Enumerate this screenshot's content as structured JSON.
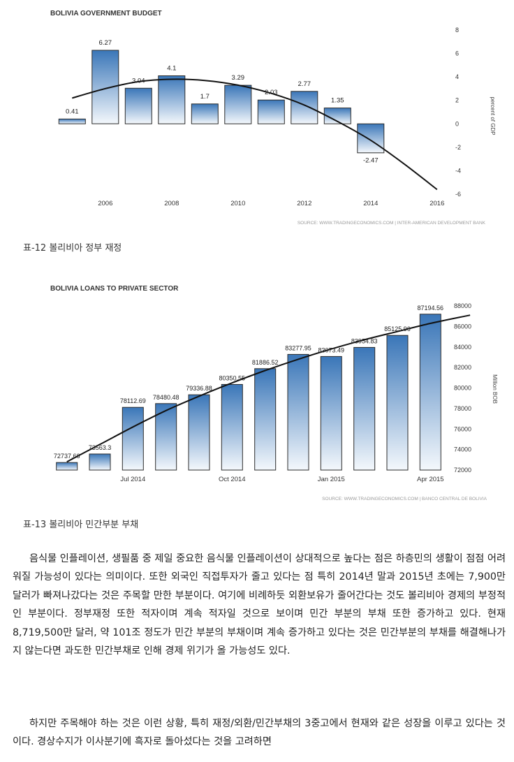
{
  "chart_data": [
    {
      "type": "bar",
      "title": "BOLIVIA GOVERNMENT BUDGET",
      "ylabel": "percent of GDP",
      "source": "SOURCE: WWW.TRADINGECONOMICS.COM | INTER-AMERICAN DEVELOPMENT BANK",
      "x": [
        2005,
        2006,
        2007,
        2008,
        2009,
        2010,
        2011,
        2012,
        2013,
        2014
      ],
      "values": [
        0.41,
        6.27,
        3.04,
        4.1,
        1.7,
        3.29,
        2.03,
        2.77,
        1.35,
        -2.47
      ],
      "value_labels": [
        "0.41",
        "6.27",
        "3.04",
        "4.1",
        "1.7",
        "3.29",
        "2.03",
        "2.77",
        "1.35",
        "-2.47"
      ],
      "xticks": [
        "2006",
        "2008",
        "2010",
        "2012",
        "2014",
        "2016"
      ],
      "xtick_values": [
        2006,
        2008,
        2010,
        2012,
        2014,
        2016
      ],
      "yticks": [
        "8",
        "6",
        "4",
        "2",
        "0",
        "-2",
        "-4",
        "-6"
      ],
      "ytick_values": [
        8,
        6,
        4,
        2,
        0,
        -2,
        -4,
        -6
      ],
      "ylim": [
        -6,
        8
      ],
      "xlim": [
        2004.3,
        2016.3
      ],
      "trend": {
        "x": [
          2005,
          2006,
          2007,
          2008,
          2009,
          2010,
          2011,
          2012,
          2013,
          2014,
          2015,
          2016
        ],
        "y": [
          2.2,
          3.0,
          3.6,
          3.8,
          3.7,
          3.3,
          2.6,
          1.6,
          0.2,
          -1.4,
          -3.4,
          -5.6
        ]
      },
      "grid": false
    },
    {
      "type": "bar",
      "title": "BOLIVIA LOANS TO PRIVATE SECTOR",
      "ylabel": "Million BOB",
      "source": "SOURCE: WWW.TRADINGECONOMICS.COM | BANCO CENTRAL DE BOLIVIA",
      "categories": [
        "2014-05",
        "2014-06",
        "2014-07",
        "2014-08",
        "2014-09",
        "2014-10",
        "2014-11",
        "2014-12",
        "2015-01",
        "2015-02",
        "2015-03",
        "2015-04"
      ],
      "values": [
        72737.66,
        73563.3,
        78112.69,
        78480.48,
        79336.88,
        80350.55,
        81886.52,
        83277.95,
        83073.49,
        83954.83,
        85125.96,
        87194.56
      ],
      "value_labels": [
        "72737.66",
        "73563.3",
        "78112.69",
        "78480.48",
        "79336.88",
        "80350.55",
        "81886.52",
        "83277.95",
        "83073.49",
        "83954.83",
        "85125.96",
        "87194.56"
      ],
      "xticks": [
        "Jul 2014",
        "Oct 2014",
        "Jan 2015",
        "Apr 2015"
      ],
      "xtick_index": [
        2,
        5,
        8,
        11
      ],
      "yticks": [
        "88000",
        "86000",
        "84000",
        "82000",
        "80000",
        "78000",
        "76000",
        "74000",
        "72000"
      ],
      "ytick_values": [
        88000,
        86000,
        84000,
        82000,
        80000,
        78000,
        76000,
        74000,
        72000
      ],
      "ylim": [
        72000,
        88000
      ],
      "trend": {
        "x": [
          0,
          1,
          2,
          3,
          4,
          5,
          6,
          7,
          8,
          9,
          10,
          11,
          12.2
        ],
        "y": [
          72800,
          74500,
          76200,
          77800,
          79200,
          80500,
          81700,
          82800,
          83800,
          84700,
          85500,
          86300,
          87100
        ]
      },
      "grid": false
    }
  ],
  "captions": {
    "fig12": "표-12 볼리비아 정부 재정",
    "fig13": "표-13 볼리비아 민간부분 부채"
  },
  "body": {
    "para1": "음식물 인플레이션, 생필품 중 제일 중요한 음식물 인플레이션이 상대적으로 높다는 점은 하층민의 생활이 점점 어려워질 가능성이 있다는 의미이다. 또한 외국인 직접투자가 줄고 있다는 점 특히 2014년 말과 2015년 초에는 7,900만 달러가 빠져나갔다는 것은 주목할 만한 부분이다. 여기에 비례하듯 외환보유가 줄어간다는 것도 볼리비아 경제의 부정적인 부분이다. 정부재정 또한 적자이며 계속 적자일 것으로 보이며 민간 부분의 부채 또한 증가하고 있다. 현재 8,719,500만 달러, 약 101조 정도가 민간 부분의 부채이며 계속 증가하고 있다는 것은 민간부분의 부채를 해결해나가지 않는다면 과도한 민간부채로 인해 경제 위기가 올 가능성도 있다.",
    "para2": "하지만 주목해야 하는 것은 이런 상황, 특히 재정/외환/민간부채의 3중고에서 현재와 같은 성장을 이루고 있다는 것이다. 경상수지가 이사분기에 흑자로 돌아섰다는 것을 고려하면"
  },
  "colors": {
    "bar_top": "#3a76b8",
    "bar_bottom": "#f4f8fc",
    "bar_stroke": "#2b2b2b",
    "trend": "#111111",
    "text": "#333333",
    "source": "#9a9a9a"
  }
}
